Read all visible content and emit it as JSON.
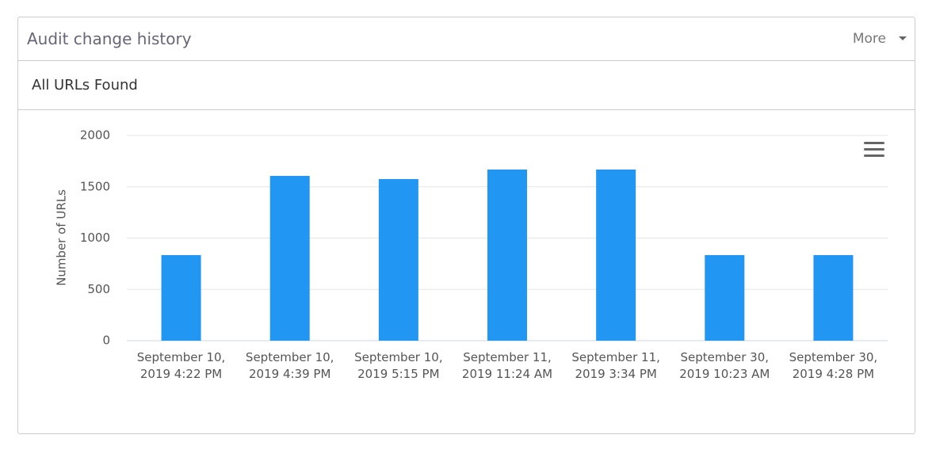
{
  "header": {
    "title": "Audit change history",
    "more": "More"
  },
  "subheader": "All URLs Found",
  "chart_data": {
    "type": "bar",
    "y_label": "Number of URLs",
    "categories": [
      "September 10, 2019 4:22 PM",
      "September 10, 2019 4:39 PM",
      "September 10, 2019 5:15 PM",
      "September 11, 2019 11:24 AM",
      "September 11, 2019 3:34 PM",
      "September 30, 2019 10:23 AM",
      "September 30, 2019 4:28 PM"
    ],
    "values": [
      834,
      1606,
      1575,
      1668,
      1668,
      834,
      834
    ],
    "color": "#2196f3",
    "ylim": [
      0,
      2000
    ],
    "yticks": [
      0,
      500,
      1000,
      1500,
      2000
    ],
    "grid": true
  }
}
